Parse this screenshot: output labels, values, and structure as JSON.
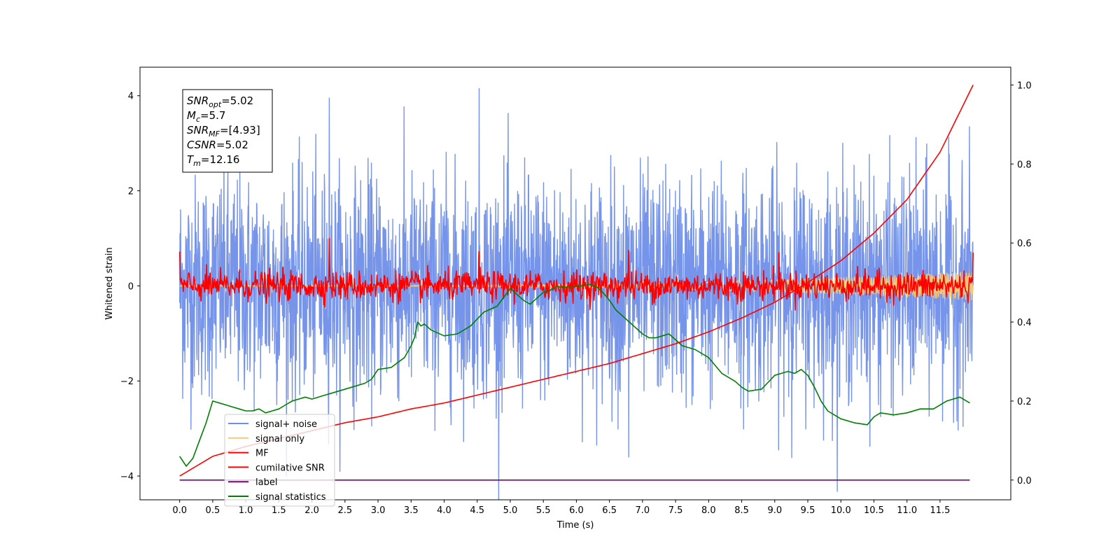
{
  "chart_data": {
    "type": "line",
    "xlabel": "Time (s)",
    "ylabel": "Whitened strain",
    "xlim": [
      -0.6,
      12.57
    ],
    "ylim": [
      -4.5,
      4.6
    ],
    "y2lim": [
      -0.05,
      1.045
    ],
    "x_ticks": [
      0.0,
      0.5,
      1.0,
      1.5,
      2.0,
      2.5,
      3.0,
      3.5,
      4.0,
      4.5,
      5.0,
      5.5,
      6.0,
      6.5,
      7.0,
      7.5,
      8.0,
      8.5,
      9.0,
      9.5,
      10.0,
      10.5,
      11.0,
      11.5
    ],
    "x_tick_labels": [
      "0.0",
      "0.5",
      "1.0",
      "1.5",
      "2.0",
      "2.5",
      "3.0",
      "3.5",
      "4.0",
      "4.5",
      "5.0",
      "5.5",
      "6.0",
      "6.5",
      "7.0",
      "7.5",
      "8.0",
      "8.5",
      "9.0",
      "9.5",
      "10.0",
      "10.5",
      "11.0",
      "11.5"
    ],
    "y_ticks": [
      -4,
      -2,
      0,
      2,
      4
    ],
    "y_tick_labels": [
      "−4",
      "−2",
      "0",
      "2",
      "4"
    ],
    "y2_ticks": [
      0.0,
      0.2,
      0.4,
      0.6,
      0.8,
      1.0
    ],
    "y2_tick_labels": [
      "0.0",
      "0.2",
      "0.4",
      "0.6",
      "0.8",
      "1.0"
    ],
    "grid": false,
    "legend_placement": "lower-left",
    "series": [
      {
        "name": "signal+ noise",
        "color": "#6f8ee8",
        "axis": "left",
        "kind": "noise",
        "x_range": [
          0.0,
          12.0
        ],
        "spread": 1.15,
        "peaks": [
          3.95,
          4.15,
          -3.6,
          -3.45
        ]
      },
      {
        "name": "signal only",
        "color": "#f5c87a",
        "axis": "left",
        "kind": "chirp",
        "x_range": [
          0.0,
          12.0
        ],
        "amplitude_end": 0.3
      },
      {
        "name": "MF",
        "color": "#ff0000",
        "axis": "left",
        "kind": "noise",
        "x_range": [
          0.0,
          12.0
        ],
        "spread": 0.15,
        "peaks": [
          1.0,
          0.72,
          0.75,
          0.7
        ]
      },
      {
        "name": "cumilative SNR",
        "color": "#ff0000",
        "axis": "right",
        "x": [
          0.0,
          0.5,
          1.0,
          1.5,
          2.0,
          2.5,
          3.0,
          3.5,
          4.0,
          4.5,
          5.0,
          5.5,
          6.0,
          6.5,
          7.0,
          7.5,
          8.0,
          8.5,
          9.0,
          9.5,
          10.0,
          10.5,
          11.0,
          11.5,
          12.0
        ],
        "values": [
          0.01,
          0.06,
          0.085,
          0.105,
          0.125,
          0.145,
          0.16,
          0.18,
          0.195,
          0.215,
          0.235,
          0.255,
          0.275,
          0.295,
          0.32,
          0.345,
          0.375,
          0.41,
          0.45,
          0.5,
          0.555,
          0.625,
          0.71,
          0.83,
          1.0
        ]
      },
      {
        "name": "label",
        "color": "#7b007b",
        "axis": "right",
        "x": [
          0.0,
          11.95
        ],
        "values": [
          0.0,
          0.0
        ]
      },
      {
        "name": "signal statistics",
        "color": "#008000",
        "axis": "right",
        "x": [
          0.0,
          0.1,
          0.2,
          0.3,
          0.4,
          0.5,
          0.6,
          0.7,
          0.8,
          0.9,
          1.0,
          1.1,
          1.2,
          1.3,
          1.4,
          1.5,
          1.6,
          1.7,
          1.8,
          1.9,
          2.0,
          2.2,
          2.4,
          2.6,
          2.8,
          2.9,
          3.0,
          3.2,
          3.4,
          3.5,
          3.55,
          3.6,
          3.65,
          3.7,
          3.8,
          4.0,
          4.2,
          4.4,
          4.6,
          4.8,
          5.0,
          5.1,
          5.2,
          5.3,
          5.4,
          5.5,
          5.6,
          5.7,
          5.8,
          6.0,
          6.2,
          6.3,
          6.4,
          6.5,
          6.6,
          6.8,
          7.0,
          7.1,
          7.2,
          7.3,
          7.4,
          7.5,
          7.6,
          7.8,
          8.0,
          8.2,
          8.4,
          8.5,
          8.6,
          8.8,
          9.0,
          9.1,
          9.2,
          9.3,
          9.4,
          9.5,
          9.6,
          9.7,
          9.8,
          9.9,
          10.0,
          10.2,
          10.4,
          10.5,
          10.6,
          10.8,
          11.0,
          11.2,
          11.4,
          11.6,
          11.8,
          11.95
        ],
        "values": [
          0.06,
          0.035,
          0.055,
          0.1,
          0.145,
          0.2,
          0.195,
          0.19,
          0.185,
          0.18,
          0.175,
          0.175,
          0.18,
          0.17,
          0.175,
          0.18,
          0.19,
          0.2,
          0.205,
          0.21,
          0.205,
          0.215,
          0.225,
          0.235,
          0.245,
          0.255,
          0.28,
          0.285,
          0.31,
          0.34,
          0.36,
          0.4,
          0.39,
          0.395,
          0.38,
          0.365,
          0.37,
          0.39,
          0.425,
          0.44,
          0.485,
          0.47,
          0.455,
          0.445,
          0.46,
          0.475,
          0.48,
          0.49,
          0.488,
          0.49,
          0.495,
          0.49,
          0.475,
          0.455,
          0.43,
          0.4,
          0.37,
          0.36,
          0.36,
          0.365,
          0.37,
          0.355,
          0.34,
          0.33,
          0.31,
          0.27,
          0.25,
          0.235,
          0.225,
          0.23,
          0.265,
          0.27,
          0.275,
          0.27,
          0.28,
          0.265,
          0.235,
          0.2,
          0.175,
          0.165,
          0.155,
          0.145,
          0.14,
          0.16,
          0.17,
          0.165,
          0.17,
          0.18,
          0.18,
          0.2,
          0.21,
          0.195
        ]
      }
    ],
    "annotation": [
      {
        "symbol": "SNR",
        "sub": "opt",
        "value": "=5.02"
      },
      {
        "symbol": "M",
        "sub": "c",
        "value": "=5.7"
      },
      {
        "symbol": "SNR",
        "sub": "MF",
        "value": "=[4.93]"
      },
      {
        "symbol": "CSNR",
        "sub": "",
        "value": "=5.02"
      },
      {
        "symbol": "T",
        "sub": "m",
        "value": "=12.16"
      }
    ]
  }
}
